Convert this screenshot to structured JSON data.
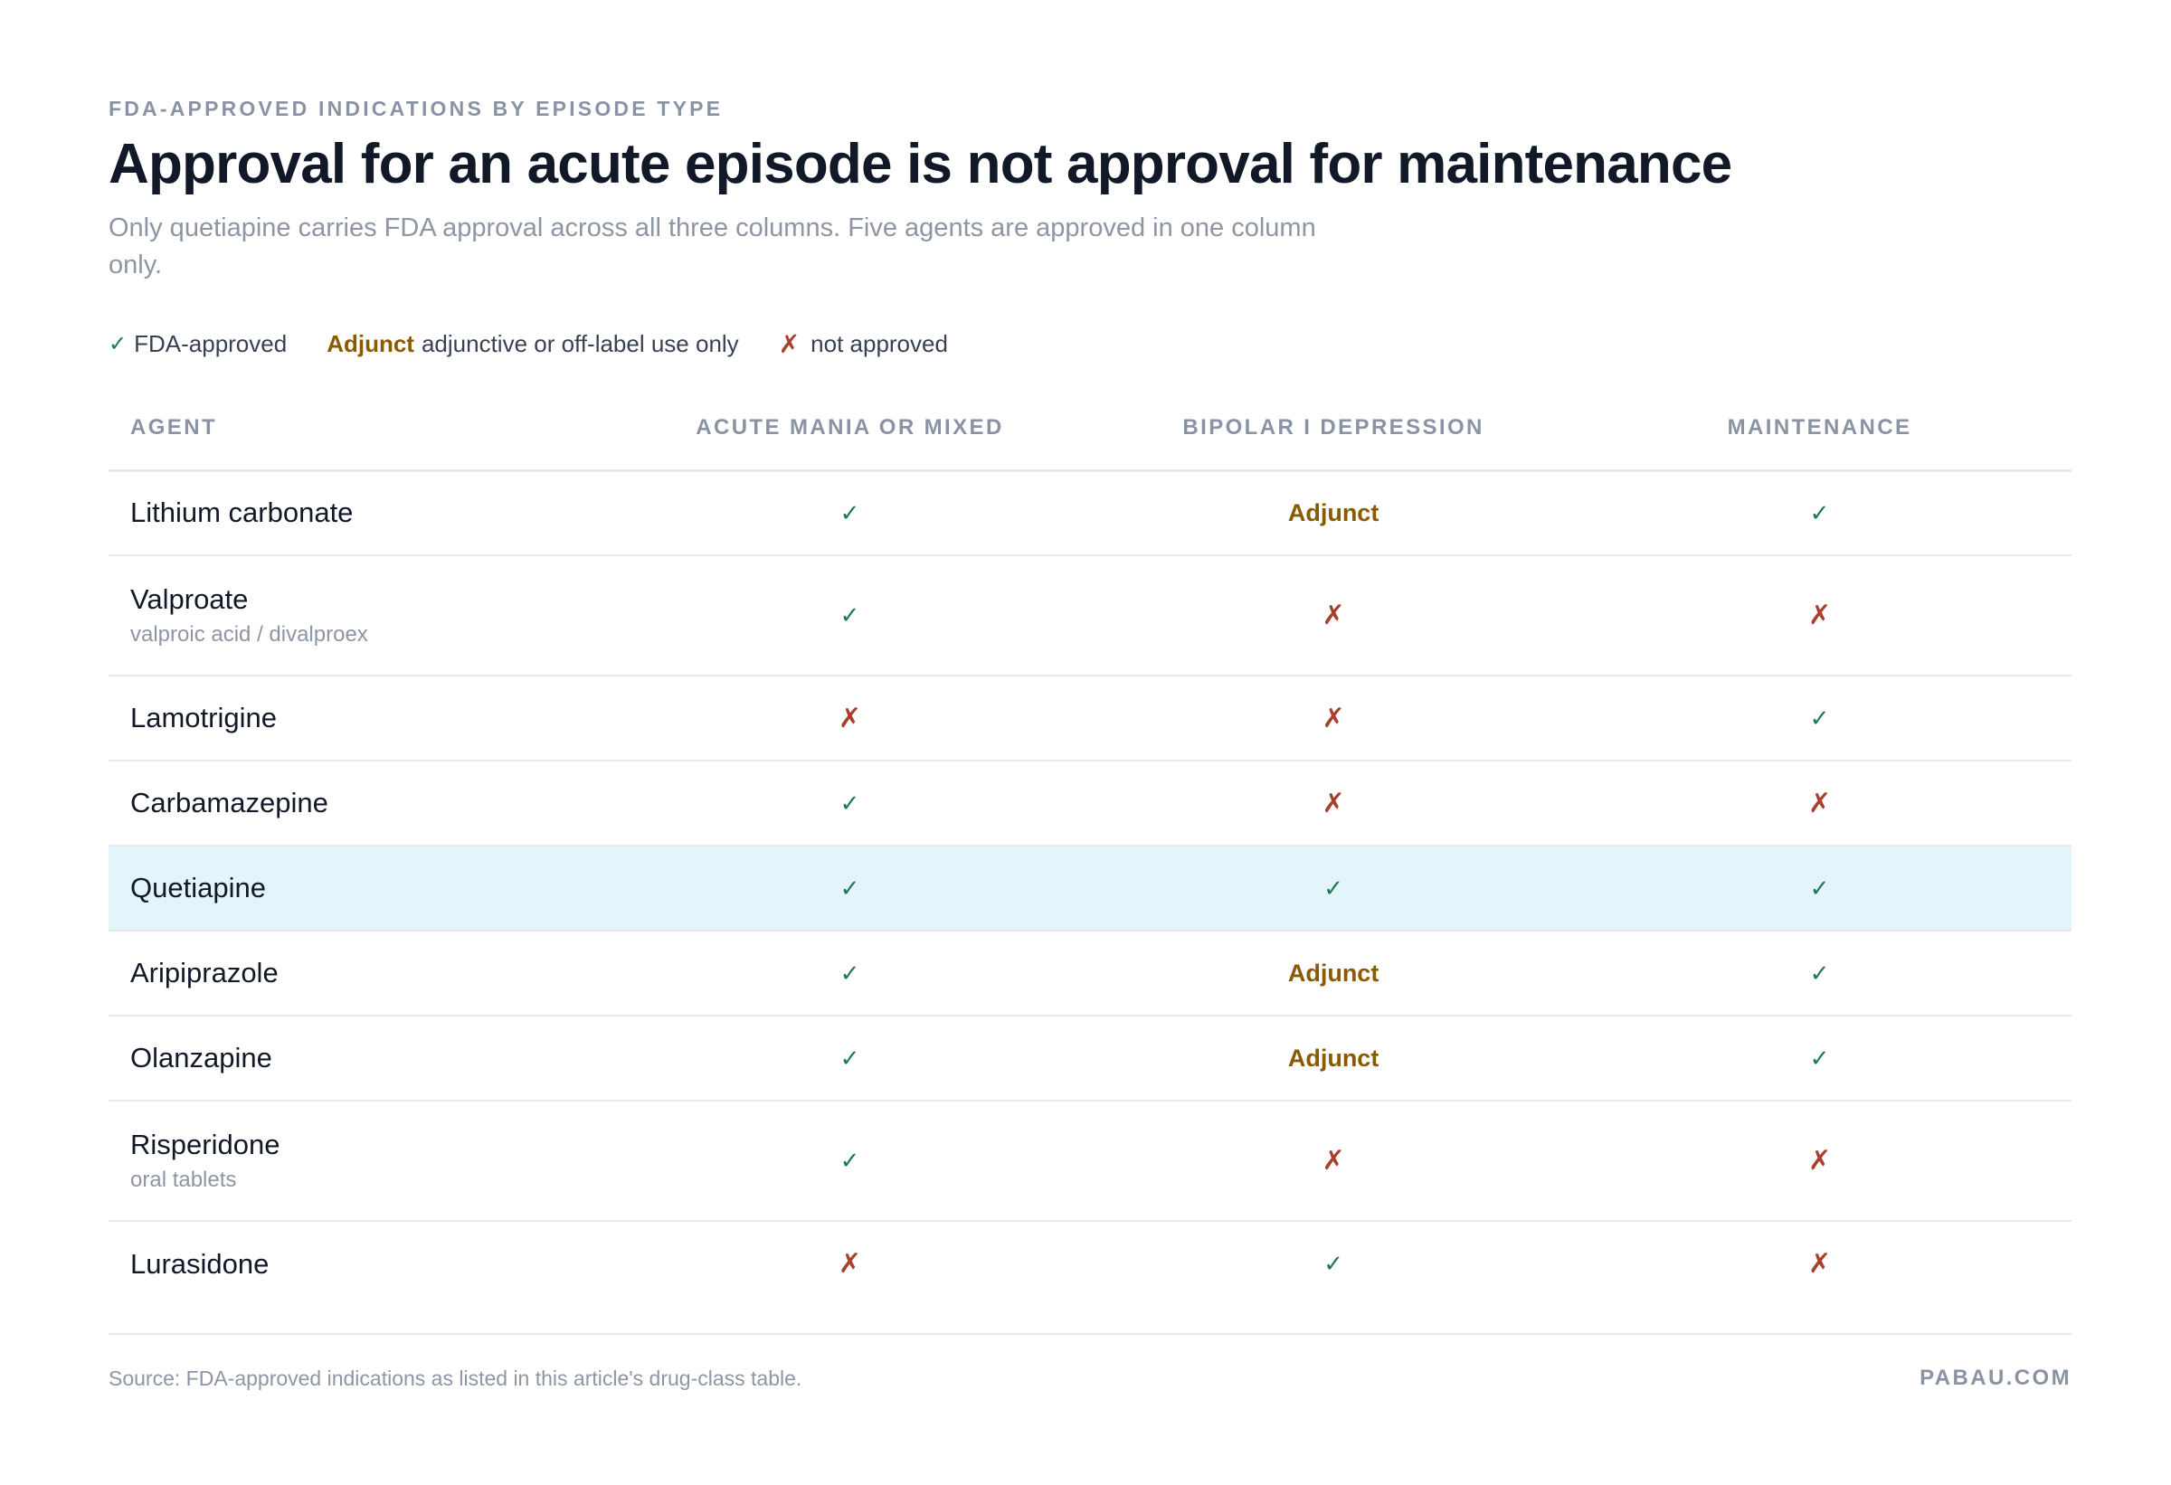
{
  "header": {
    "eyebrow": "FDA-APPROVED INDICATIONS BY EPISODE TYPE",
    "title": "Approval for an acute episode is not approval for maintenance",
    "subtitle": "Only quetiapine carries FDA approval across all three columns. Five agents are approved in one column only."
  },
  "legend": {
    "approved_symbol": "✓",
    "approved_label": "FDA-approved",
    "adjunct_symbol": "Adjunct",
    "adjunct_label": "adjunctive or off-label use only",
    "not_symbol": "✗",
    "not_label": "not approved"
  },
  "colors": {
    "approved": "#1e7a55",
    "adjunct": "#8a5a00",
    "not_approved": "#a8402d",
    "highlight_row": "#e3f5fa"
  },
  "chart_data": {
    "type": "table",
    "columns": [
      "AGENT",
      "ACUTE MANIA OR MIXED",
      "BIPOLAR I DEPRESSION",
      "MAINTENANCE"
    ],
    "rows": [
      {
        "agent": "Lithium carbonate",
        "note": "",
        "values": [
          "✓",
          "Adjunct",
          "✓"
        ]
      },
      {
        "agent": "Valproate",
        "note": "valproic acid / divalproex",
        "values": [
          "✓",
          "✗",
          "✗"
        ]
      },
      {
        "agent": "Lamotrigine",
        "note": "",
        "values": [
          "✗",
          "✗",
          "✓"
        ]
      },
      {
        "agent": "Carbamazepine",
        "note": "",
        "values": [
          "✓",
          "✗",
          "✗"
        ]
      },
      {
        "agent": "Quetiapine",
        "note": "",
        "values": [
          "✓",
          "✓",
          "✓"
        ],
        "highlight": true
      },
      {
        "agent": "Aripiprazole",
        "note": "",
        "values": [
          "✓",
          "Adjunct",
          "✓"
        ]
      },
      {
        "agent": "Olanzapine",
        "note": "",
        "values": [
          "✓",
          "Adjunct",
          "✓"
        ]
      },
      {
        "agent": "Risperidone",
        "note": "oral tablets",
        "values": [
          "✓",
          "✗",
          "✗"
        ]
      },
      {
        "agent": "Lurasidone",
        "note": "",
        "values": [
          "✗",
          "✓",
          "✗"
        ]
      }
    ]
  },
  "footer": {
    "source": "Source: FDA-approved indications as listed in this article's drug-class table.",
    "brand": "PABAU.COM"
  }
}
